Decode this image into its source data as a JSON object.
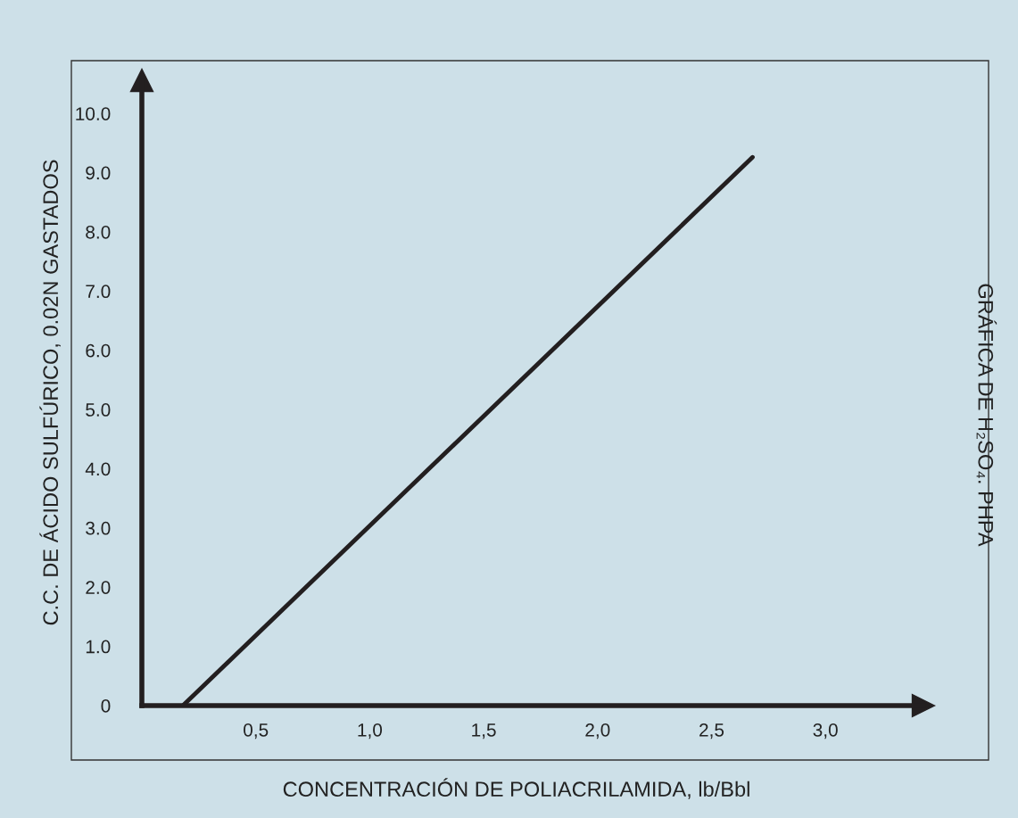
{
  "chart_data": {
    "type": "line",
    "title": "GRÁFICA DE H₂SO₄. PHPA",
    "xlabel": "CONCENTRACIÓN DE POLIACRILAMIDA, lb/Bbl",
    "ylabel": "C.C. DE ÁCIDO SULFÚRICO, 0.02N GASTADOS",
    "series": [
      {
        "color": "#231f20",
        "x": [
          0.18,
          2.68
        ],
        "values": [
          0,
          9.26
        ]
      }
    ],
    "xlim": [
      0,
      3.43
    ],
    "ylim": [
      0,
      10.56
    ],
    "xticks": [
      {
        "value": 0.5,
        "label": "0,5"
      },
      {
        "value": 1.0,
        "label": "1,0"
      },
      {
        "value": 1.5,
        "label": "1,5"
      },
      {
        "value": 2.0,
        "label": "2,0"
      },
      {
        "value": 2.5,
        "label": "2,5"
      },
      {
        "value": 3.0,
        "label": "3,0"
      }
    ],
    "yticks": [
      {
        "value": 0,
        "label": "0"
      },
      {
        "value": 1,
        "label": "1.0"
      },
      {
        "value": 2,
        "label": "2.0"
      },
      {
        "value": 3,
        "label": "3.0"
      },
      {
        "value": 4,
        "label": "4.0"
      },
      {
        "value": 5,
        "label": "5.0"
      },
      {
        "value": 6,
        "label": "6.0"
      },
      {
        "value": 7,
        "label": "7.0"
      },
      {
        "value": 8,
        "label": "8.0"
      },
      {
        "value": 9,
        "label": "9.0"
      },
      {
        "value": 10,
        "label": "10.0"
      }
    ],
    "grid": false,
    "legend": false
  }
}
